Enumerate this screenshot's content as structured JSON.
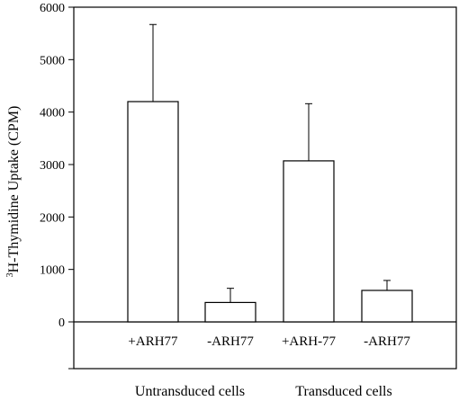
{
  "chart_data": {
    "type": "bar",
    "title": "",
    "xlabel": "",
    "ylabel": {
      "sup": "3",
      "main": "H-Thymidine Uptake (CPM)"
    },
    "ylim": [
      -900,
      6000
    ],
    "yticks": [
      0,
      1000,
      2000,
      3000,
      4000,
      5000,
      6000
    ],
    "categories": [
      "+ARH77",
      "-ARH77",
      "+ARH-77",
      "-ARH77"
    ],
    "values": [
      4200,
      370,
      3070,
      600
    ],
    "error_upper": [
      5670,
      640,
      4160,
      790
    ],
    "groups": [
      {
        "label": "Untransduced cells",
        "categories": [
          0,
          1
        ]
      },
      {
        "label": "Transduced cells",
        "categories": [
          2,
          3
        ]
      }
    ],
    "grid": false,
    "legend": "none",
    "bar_fill": "#ffffff",
    "bar_stroke": "#000000"
  }
}
